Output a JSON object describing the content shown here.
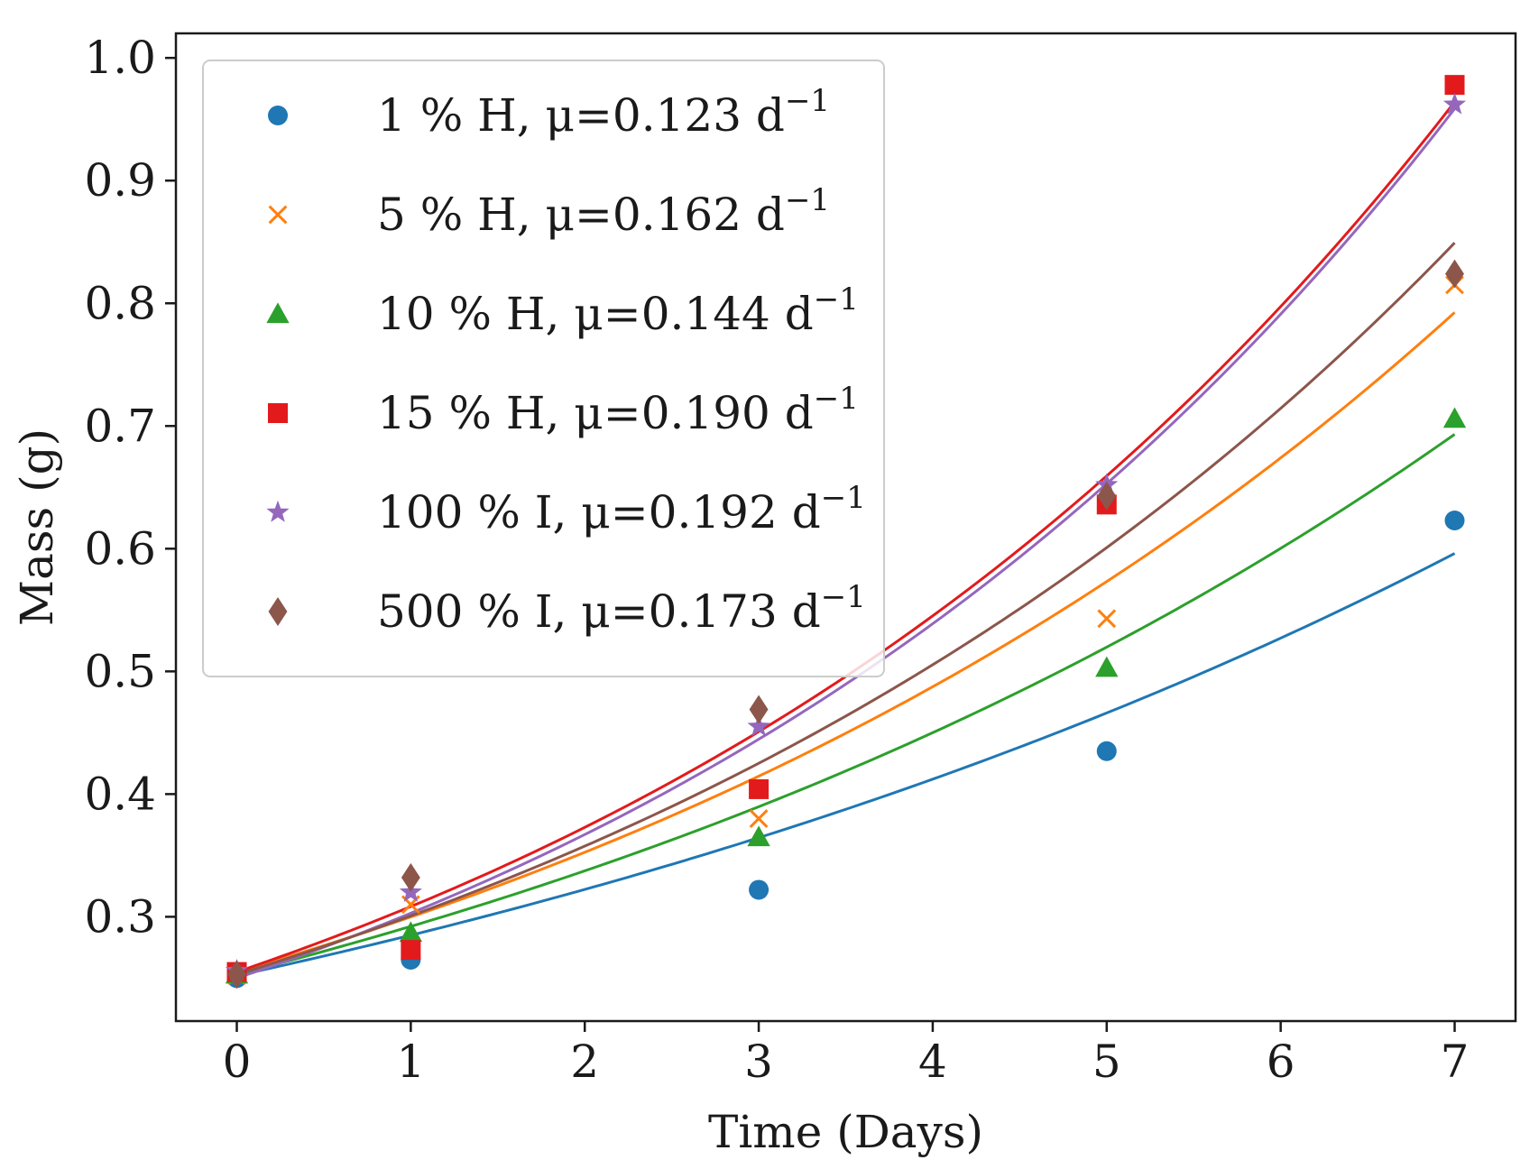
{
  "chart_data": {
    "type": "scatter",
    "title": "",
    "xlabel": "Time (Days)",
    "ylabel": "Mass (g)",
    "xlim": [
      -0.35,
      7.35
    ],
    "ylim": [
      0.215,
      1.02
    ],
    "xticks": [
      0,
      1,
      2,
      3,
      4,
      5,
      6,
      7
    ],
    "yticks": [
      0.3,
      0.4,
      0.5,
      0.6,
      0.7,
      0.8,
      0.9,
      1.0
    ],
    "xtick_labels": [
      "0",
      "1",
      "2",
      "3",
      "4",
      "5",
      "6",
      "7"
    ],
    "ytick_labels": [
      "0.3",
      "0.4",
      "0.5",
      "0.6",
      "0.7",
      "0.8",
      "0.9",
      "1.0"
    ],
    "grid": false,
    "legend_position": "upper-left",
    "fit": {
      "model": "exponential",
      "x_range": [
        0,
        7
      ]
    },
    "series": [
      {
        "name": "1 % H, μ=0.123 d",
        "superscript": "−1",
        "marker": "circle",
        "color": "#1f77b4",
        "fit_m0": 0.252,
        "mu": 0.123,
        "x": [
          0,
          1,
          3,
          5,
          7
        ],
        "y": [
          0.25,
          0.265,
          0.322,
          0.435,
          0.623
        ]
      },
      {
        "name": "5 % H, μ=0.162 d",
        "superscript": "−1",
        "marker": "x",
        "color": "#ff7f0e",
        "fit_m0": 0.255,
        "mu": 0.162,
        "x": [
          0,
          1,
          3,
          5,
          7
        ],
        "y": [
          0.252,
          0.31,
          0.38,
          0.543,
          0.815
        ]
      },
      {
        "name": "10 % H, μ=0.144 d",
        "superscript": "−1",
        "marker": "triangle",
        "color": "#2ca02c",
        "fit_m0": 0.253,
        "mu": 0.144,
        "x": [
          0,
          1,
          3,
          5,
          7
        ],
        "y": [
          0.253,
          0.287,
          0.365,
          0.503,
          0.706
        ]
      },
      {
        "name": "15 % H, μ=0.190 d",
        "superscript": "−1",
        "marker": "square",
        "color": "#e31a1c",
        "fit_m0": 0.255,
        "mu": 0.19,
        "x": [
          0,
          1,
          3,
          5,
          7
        ],
        "y": [
          0.255,
          0.273,
          0.404,
          0.636,
          0.978
        ]
      },
      {
        "name": "100 % I, μ=0.192 d",
        "superscript": "−1",
        "marker": "star",
        "color": "#9467bd",
        "fit_m0": 0.25,
        "mu": 0.192,
        "x": [
          0,
          1,
          3,
          5,
          7
        ],
        "y": [
          0.256,
          0.32,
          0.455,
          0.652,
          0.962
        ]
      },
      {
        "name": "500 % I, μ=0.173 d",
        "superscript": "−1",
        "marker": "diamond",
        "color": "#8c564b",
        "fit_m0": 0.253,
        "mu": 0.173,
        "x": [
          0,
          1,
          3,
          5,
          7
        ],
        "y": [
          0.253,
          0.332,
          0.469,
          0.643,
          0.824
        ]
      }
    ]
  }
}
